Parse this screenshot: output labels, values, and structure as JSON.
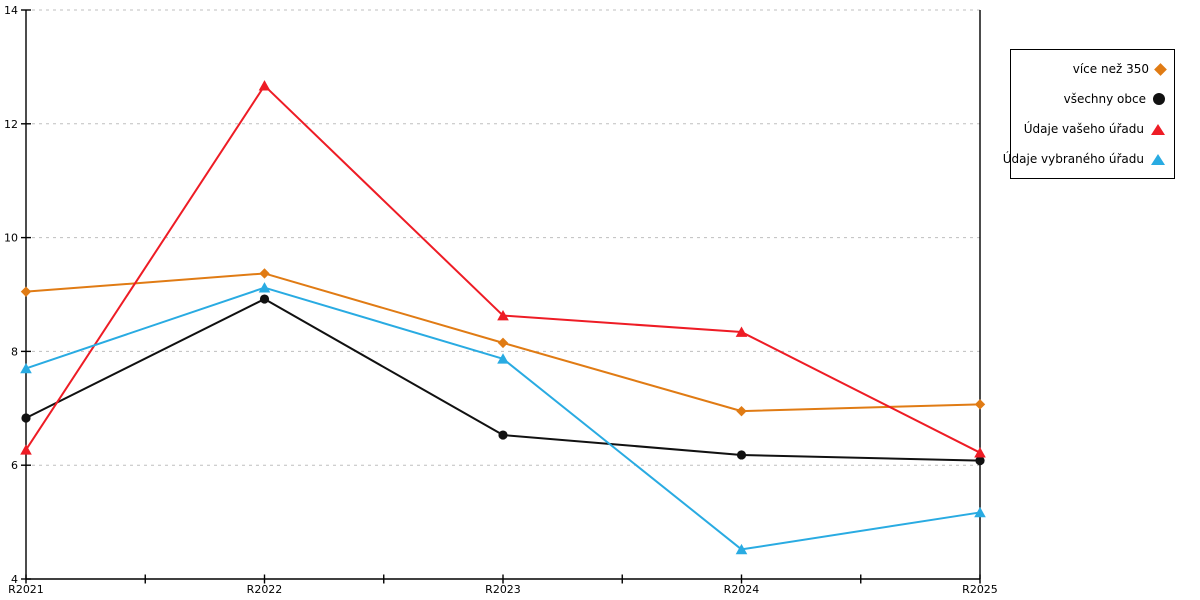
{
  "chart_data": {
    "type": "line",
    "title": "",
    "xlabel": "",
    "ylabel": "",
    "x_categories": [
      "R2021",
      "R2022",
      "R2023",
      "R2024",
      "R2025"
    ],
    "y_ticks": [
      4,
      6,
      8,
      10,
      12,
      14
    ],
    "ylim": [
      4,
      14
    ],
    "grid": "horizontal dashed lines at 6, 8, 10, 12, 14",
    "grid_color": "#bfbfbf",
    "axis_color": "#000000",
    "legend_position": "right outside, framed box",
    "series": [
      {
        "name": "více než 350",
        "marker": "diamond",
        "color": "#e07b14",
        "values": [
          9.05,
          9.37,
          8.15,
          6.95,
          7.07
        ]
      },
      {
        "name": "všechny obce",
        "marker": "circle",
        "color": "#111111",
        "values": [
          6.83,
          8.92,
          6.53,
          6.18,
          6.08
        ]
      },
      {
        "name": "Údaje vašeho úřadu",
        "marker": "triangle",
        "color": "#ee1c25",
        "values": [
          6.27,
          12.67,
          8.63,
          8.34,
          6.22
        ]
      },
      {
        "name": "Údaje vybraného úřadu",
        "marker": "triangle",
        "color": "#29abe2",
        "values": [
          7.7,
          9.12,
          7.87,
          4.52,
          5.17
        ]
      }
    ]
  }
}
